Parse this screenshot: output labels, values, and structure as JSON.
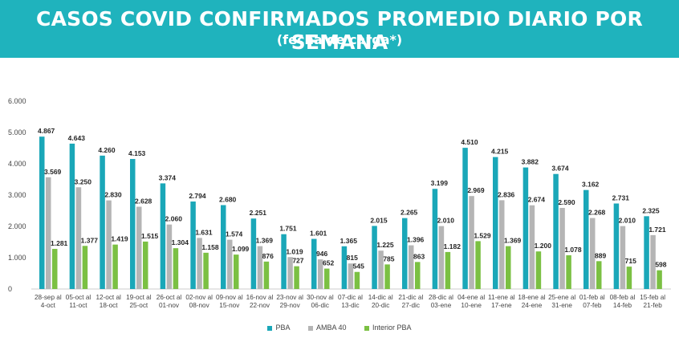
{
  "header": {
    "title": "CASOS COVID CONFIRMADOS PROMEDIO DIARIO POR SEMANA",
    "subtitle": "(fecha de carga*)"
  },
  "colors": {
    "banner": "#1fb3bd",
    "pba": "#1aa7b8",
    "amba": "#b5b5b5",
    "interior": "#7bc043",
    "axis_text": "#444444",
    "value_text": "#222222",
    "grid": "#e3e3e3"
  },
  "chart_data": {
    "type": "bar",
    "categories": [
      [
        "28-sep al",
        "4-oct"
      ],
      [
        "05-oct al",
        "11-oct"
      ],
      [
        "12-oct al",
        "18-oct"
      ],
      [
        "19-oct al",
        "25-oct"
      ],
      [
        "26-oct al",
        "01-nov"
      ],
      [
        "02-nov al",
        "08-nov"
      ],
      [
        "09-nov al",
        "15-nov"
      ],
      [
        "16-nov al",
        "22-nov"
      ],
      [
        "23-nov al",
        "29-nov"
      ],
      [
        "30-nov al",
        "06-dic"
      ],
      [
        "07-dic al",
        "13-dic"
      ],
      [
        "14-dic al",
        "20-dic"
      ],
      [
        "21-dic al",
        "27-dic"
      ],
      [
        "28-dic al",
        "03-ene"
      ],
      [
        "04-ene al",
        "10-ene"
      ],
      [
        "11-ene al",
        "17-ene"
      ],
      [
        "18-ene al",
        "24-ene"
      ],
      [
        "25-ene al",
        "31-ene"
      ],
      [
        "01-feb al",
        "07-feb"
      ],
      [
        "08-feb al",
        "14-feb"
      ],
      [
        "15-feb al",
        "21-feb"
      ]
    ],
    "series": [
      {
        "name": "PBA",
        "values": [
          4867,
          4643,
          4260,
          4153,
          3374,
          2794,
          2680,
          2251,
          1751,
          1601,
          1365,
          2015,
          2265,
          3199,
          4510,
          4215,
          3882,
          3674,
          3162,
          2731,
          2325
        ],
        "labels": [
          "4.867",
          "4.643",
          "4.260",
          "4.153",
          "3.374",
          "2.794",
          "2.680",
          "2.251",
          "1.751",
          "1.601",
          "1.365",
          "2.015",
          "2.265",
          "3.199",
          "4.510",
          "4.215",
          "3.882",
          "3.674",
          "3.162",
          "2.731",
          "2.325"
        ]
      },
      {
        "name": "AMBA 40",
        "values": [
          3569,
          3250,
          2830,
          2628,
          2060,
          1631,
          1574,
          1369,
          1019,
          946,
          815,
          1225,
          1396,
          2010,
          2969,
          2836,
          2674,
          2590,
          2268,
          2010,
          1721
        ],
        "labels": [
          "3.569",
          "3.250",
          "2.830",
          "2.628",
          "2.060",
          "1.631",
          "1.574",
          "1.369",
          "1.019",
          "946",
          "815",
          "1.225",
          "1.396",
          "2.010",
          "2.969",
          "2.836",
          "2.674",
          "2.590",
          "2.268",
          "2.010",
          "1.721"
        ]
      },
      {
        "name": "Interior PBA",
        "values": [
          1281,
          1377,
          1419,
          1515,
          1304,
          1158,
          1099,
          876,
          727,
          652,
          545,
          785,
          863,
          1182,
          1529,
          1369,
          1200,
          1078,
          889,
          715,
          598
        ],
        "labels": [
          "1.281",
          "1.377",
          "1.419",
          "1.515",
          "1.304",
          "1.158",
          "1.099",
          "876",
          "727",
          "652",
          "545",
          "785",
          "863",
          "1.182",
          "1.529",
          "1.369",
          "1.200",
          "1.078",
          "889",
          "715",
          "598"
        ]
      }
    ],
    "y_ticks": [
      0,
      1000,
      2000,
      3000,
      4000,
      5000,
      6000
    ],
    "y_tick_labels": [
      "0",
      "1.000",
      "2.000",
      "3.000",
      "4.000",
      "5.000",
      "6.000"
    ],
    "ylim": [
      0,
      6000
    ],
    "grid": false,
    "legend_position": "bottom",
    "xlabel": "",
    "ylabel": ""
  }
}
